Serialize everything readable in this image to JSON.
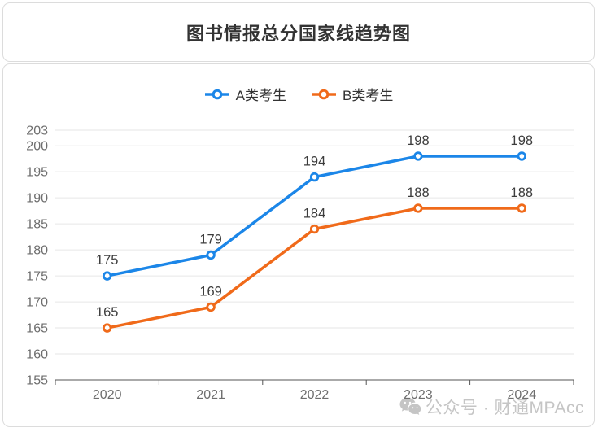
{
  "header": {
    "title": "图书情报总分国家线趋势图"
  },
  "chart_data": {
    "type": "line",
    "title": "图书情报总分国家线趋势图",
    "categories": [
      "2020",
      "2021",
      "2022",
      "2023",
      "2024"
    ],
    "series": [
      {
        "name": "A类考生",
        "color": "#1b86e8",
        "values": [
          175,
          179,
          194,
          198,
          198
        ]
      },
      {
        "name": "B类考生",
        "color": "#f06a1a",
        "values": [
          165,
          169,
          184,
          188,
          188
        ]
      }
    ],
    "ylim": [
      155,
      203
    ],
    "yticks": [
      155,
      160,
      165,
      170,
      175,
      180,
      185,
      190,
      195,
      200,
      203
    ],
    "grid": true,
    "legend_position": "top",
    "data_labels": true,
    "xlabel": "",
    "ylabel": ""
  },
  "watermark": {
    "icon": "wechat-icon",
    "text": "公众号 · 财通MPAcc"
  },
  "colors": {
    "grid": "#e6e6e6",
    "axis_line": "#555555",
    "axis_label": "#6e6e6e",
    "data_label": "#3c3c3c",
    "card_border": "#dcdcdc",
    "watermark": "#c5c5c5"
  }
}
